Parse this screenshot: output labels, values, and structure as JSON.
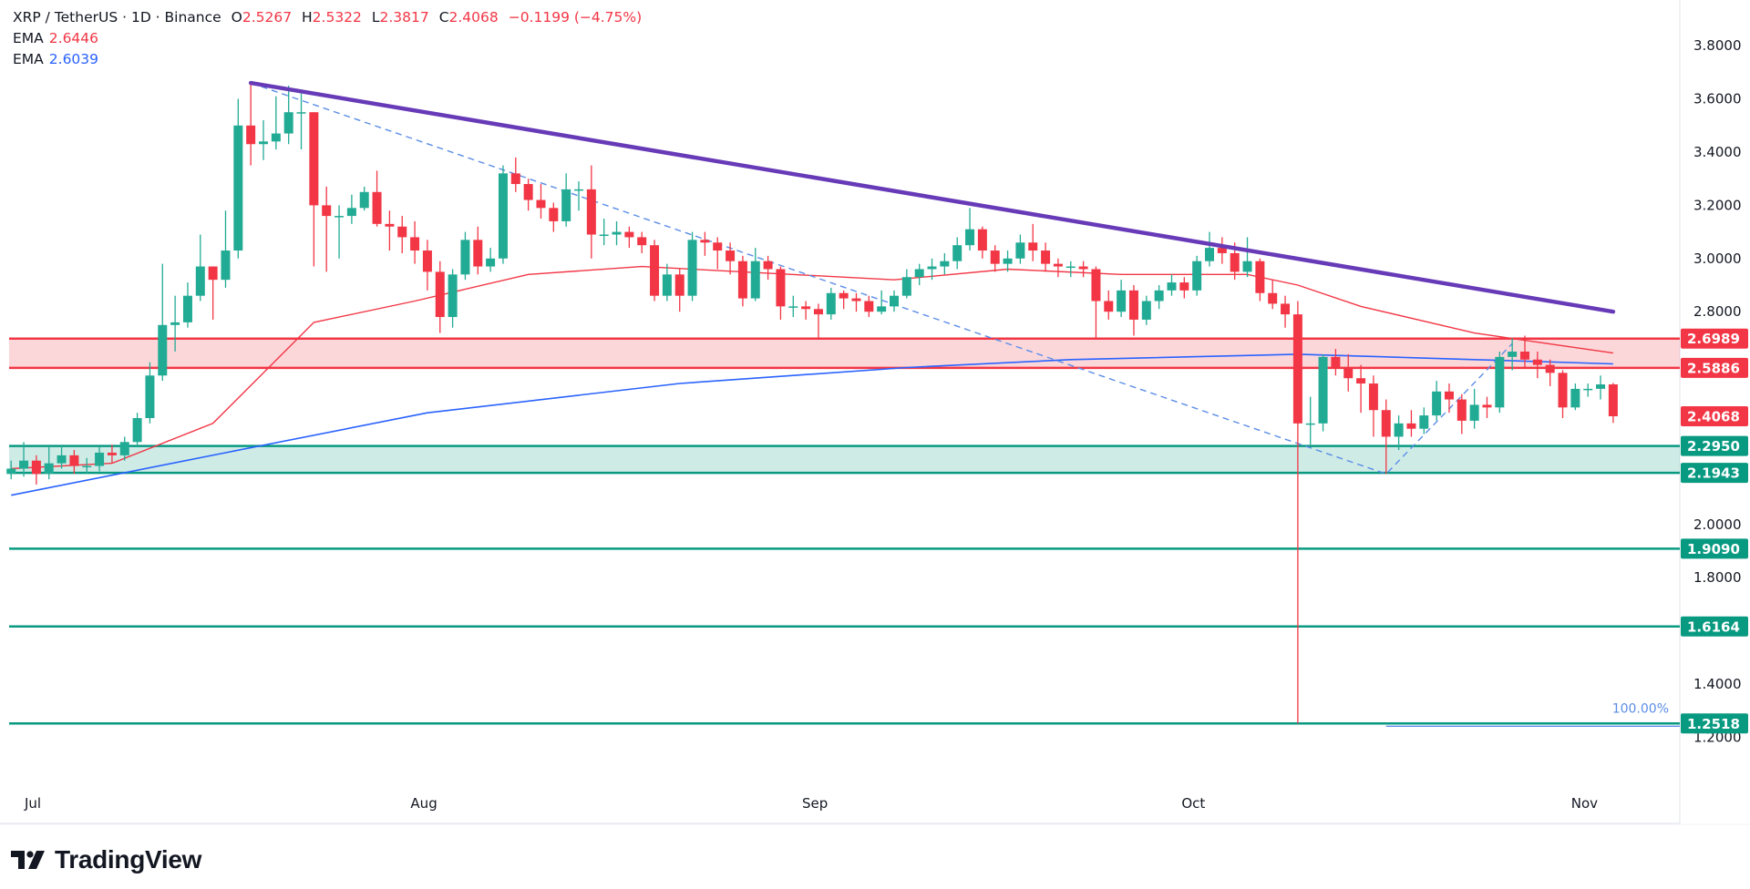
{
  "header": {
    "symbol": "XRP / TetherUS · 1D · Binance",
    "open_label": "O",
    "open": "2.5267",
    "high_label": "H",
    "high": "2.5322",
    "low_label": "L",
    "low": "2.3817",
    "close_label": "C",
    "close": "2.4068",
    "change": "−0.1199 (−4.75%)",
    "ema1_label": "EMA",
    "ema1_value": "2.6446",
    "ema2_label": "EMA",
    "ema2_value": "2.6039"
  },
  "branding": {
    "logo_text": "TradingView"
  },
  "colors": {
    "up": "#22ab94",
    "down": "#f23645",
    "ema_fast": "#f23645",
    "ema_slow": "#2962ff",
    "trendline": "#673ab7",
    "support": "#089981",
    "resistance": "#f23645",
    "fib": "#5b8de6"
  },
  "chart_data": {
    "type": "candlestick",
    "title": "XRP / TetherUS · 1D · Binance",
    "date_range": [
      "06-30",
      "11-04"
    ],
    "ylim": [
      1.08,
      3.97
    ],
    "grid": false,
    "y_ticks": [
      "3.8000",
      "3.6000",
      "3.4000",
      "3.2000",
      "3.0000",
      "2.8000",
      "2.0000",
      "1.8000",
      "1.4000",
      "1.2000"
    ],
    "x_ticks": [
      {
        "label": "Jul",
        "date": "07-01"
      },
      {
        "label": "Aug",
        "date": "08-01"
      },
      {
        "label": "Sep",
        "date": "09-01"
      },
      {
        "label": "Oct",
        "date": "10-01"
      },
      {
        "label": "Nov",
        "date": "11-01"
      }
    ],
    "candles_ohlc": [
      [
        2.19,
        2.24,
        2.17,
        2.21
      ],
      [
        2.21,
        2.31,
        2.18,
        2.24
      ],
      [
        2.24,
        2.26,
        2.15,
        2.19
      ],
      [
        2.19,
        2.29,
        2.17,
        2.23
      ],
      [
        2.23,
        2.3,
        2.21,
        2.26
      ],
      [
        2.26,
        2.28,
        2.19,
        2.22
      ],
      [
        2.22,
        2.25,
        2.19,
        2.22
      ],
      [
        2.22,
        2.29,
        2.2,
        2.27
      ],
      [
        2.27,
        2.3,
        2.23,
        2.26
      ],
      [
        2.26,
        2.33,
        2.24,
        2.31
      ],
      [
        2.31,
        2.42,
        2.29,
        2.4
      ],
      [
        2.4,
        2.61,
        2.38,
        2.56
      ],
      [
        2.56,
        2.98,
        2.54,
        2.75
      ],
      [
        2.75,
        2.86,
        2.65,
        2.76
      ],
      [
        2.76,
        2.91,
        2.74,
        2.86
      ],
      [
        2.86,
        3.09,
        2.84,
        2.97
      ],
      [
        2.97,
        2.97,
        2.77,
        2.92
      ],
      [
        2.92,
        3.18,
        2.89,
        3.03
      ],
      [
        3.03,
        3.6,
        3.0,
        3.5
      ],
      [
        3.5,
        3.66,
        3.35,
        3.43
      ],
      [
        3.43,
        3.52,
        3.37,
        3.44
      ],
      [
        3.44,
        3.61,
        3.41,
        3.47
      ],
      [
        3.47,
        3.65,
        3.43,
        3.55
      ],
      [
        3.55,
        3.62,
        3.41,
        3.55
      ],
      [
        3.55,
        3.55,
        2.97,
        3.2
      ],
      [
        3.2,
        3.27,
        2.95,
        3.16
      ],
      [
        3.16,
        3.2,
        3.0,
        3.16
      ],
      [
        3.16,
        3.24,
        3.13,
        3.19
      ],
      [
        3.19,
        3.27,
        3.18,
        3.25
      ],
      [
        3.25,
        3.33,
        3.12,
        3.13
      ],
      [
        3.13,
        3.18,
        3.03,
        3.12
      ],
      [
        3.12,
        3.16,
        3.02,
        3.08
      ],
      [
        3.08,
        3.14,
        2.98,
        3.03
      ],
      [
        3.03,
        3.07,
        2.88,
        2.95
      ],
      [
        2.95,
        2.99,
        2.72,
        2.78
      ],
      [
        2.78,
        2.96,
        2.74,
        2.94
      ],
      [
        2.94,
        3.1,
        2.92,
        3.07
      ],
      [
        3.07,
        3.12,
        2.94,
        2.97
      ],
      [
        2.97,
        3.04,
        2.95,
        3.0
      ],
      [
        3.0,
        3.35,
        2.98,
        3.32
      ],
      [
        3.32,
        3.38,
        3.25,
        3.28
      ],
      [
        3.28,
        3.3,
        3.18,
        3.22
      ],
      [
        3.22,
        3.28,
        3.15,
        3.19
      ],
      [
        3.19,
        3.21,
        3.1,
        3.14
      ],
      [
        3.14,
        3.32,
        3.12,
        3.26
      ],
      [
        3.26,
        3.29,
        3.18,
        3.26
      ],
      [
        3.26,
        3.35,
        3.0,
        3.09
      ],
      [
        3.09,
        3.15,
        3.05,
        3.09
      ],
      [
        3.09,
        3.14,
        3.05,
        3.1
      ],
      [
        3.1,
        3.12,
        3.04,
        3.08
      ],
      [
        3.08,
        3.1,
        3.02,
        3.05
      ],
      [
        3.05,
        3.07,
        2.84,
        2.86
      ],
      [
        2.86,
        2.98,
        2.84,
        2.94
      ],
      [
        2.94,
        2.96,
        2.8,
        2.86
      ],
      [
        2.86,
        3.1,
        2.84,
        3.07
      ],
      [
        3.07,
        3.1,
        3.01,
        3.06
      ],
      [
        3.06,
        3.08,
        2.96,
        3.03
      ],
      [
        3.03,
        3.06,
        2.94,
        2.99
      ],
      [
        2.99,
        3.01,
        2.82,
        2.85
      ],
      [
        2.85,
        3.04,
        2.84,
        2.99
      ],
      [
        2.99,
        3.01,
        2.92,
        2.96
      ],
      [
        2.96,
        2.97,
        2.77,
        2.82
      ],
      [
        2.82,
        2.86,
        2.78,
        2.82
      ],
      [
        2.82,
        2.84,
        2.77,
        2.81
      ],
      [
        2.81,
        2.83,
        2.7,
        2.79
      ],
      [
        2.79,
        2.89,
        2.77,
        2.87
      ],
      [
        2.87,
        2.88,
        2.81,
        2.85
      ],
      [
        2.85,
        2.87,
        2.8,
        2.84
      ],
      [
        2.84,
        2.86,
        2.78,
        2.8
      ],
      [
        2.8,
        2.88,
        2.79,
        2.82
      ],
      [
        2.82,
        2.88,
        2.8,
        2.86
      ],
      [
        2.86,
        2.96,
        2.85,
        2.93
      ],
      [
        2.93,
        2.98,
        2.9,
        2.96
      ],
      [
        2.96,
        3.0,
        2.92,
        2.97
      ],
      [
        2.97,
        3.02,
        2.94,
        2.99
      ],
      [
        2.99,
        3.08,
        2.96,
        3.05
      ],
      [
        3.05,
        3.19,
        3.03,
        3.11
      ],
      [
        3.11,
        3.12,
        3.0,
        3.03
      ],
      [
        3.03,
        3.05,
        2.95,
        2.98
      ],
      [
        2.98,
        3.03,
        2.95,
        3.0
      ],
      [
        3.0,
        3.09,
        2.98,
        3.06
      ],
      [
        3.06,
        3.13,
        2.99,
        3.03
      ],
      [
        3.03,
        3.06,
        2.95,
        2.98
      ],
      [
        2.98,
        3.0,
        2.93,
        2.97
      ],
      [
        2.97,
        2.99,
        2.93,
        2.97
      ],
      [
        2.97,
        2.99,
        2.93,
        2.96
      ],
      [
        2.96,
        2.97,
        2.7,
        2.84
      ],
      [
        2.84,
        2.88,
        2.77,
        2.8
      ],
      [
        2.8,
        2.92,
        2.78,
        2.88
      ],
      [
        2.88,
        2.9,
        2.71,
        2.77
      ],
      [
        2.77,
        2.86,
        2.75,
        2.84
      ],
      [
        2.84,
        2.9,
        2.81,
        2.88
      ],
      [
        2.88,
        2.94,
        2.86,
        2.91
      ],
      [
        2.91,
        2.93,
        2.85,
        2.88
      ],
      [
        2.88,
        3.01,
        2.86,
        2.99
      ],
      [
        2.99,
        3.1,
        2.97,
        3.04
      ],
      [
        3.04,
        3.08,
        2.98,
        3.02
      ],
      [
        3.02,
        3.06,
        2.92,
        2.95
      ],
      [
        2.95,
        3.08,
        2.93,
        2.99
      ],
      [
        2.99,
        3.0,
        2.84,
        2.87
      ],
      [
        2.87,
        2.92,
        2.81,
        2.83
      ],
      [
        2.83,
        2.86,
        2.74,
        2.79
      ],
      [
        2.79,
        2.84,
        1.2518,
        2.38
      ],
      [
        2.38,
        2.48,
        2.3,
        2.38
      ],
      [
        2.38,
        2.64,
        2.35,
        2.63
      ],
      [
        2.63,
        2.66,
        2.56,
        2.59
      ],
      [
        2.59,
        2.64,
        2.5,
        2.55
      ],
      [
        2.55,
        2.6,
        2.42,
        2.53
      ],
      [
        2.53,
        2.56,
        2.33,
        2.43
      ],
      [
        2.43,
        2.47,
        2.19,
        2.33
      ],
      [
        2.33,
        2.41,
        2.28,
        2.38
      ],
      [
        2.38,
        2.43,
        2.33,
        2.36
      ],
      [
        2.36,
        2.44,
        2.34,
        2.41
      ],
      [
        2.41,
        2.54,
        2.39,
        2.5
      ],
      [
        2.5,
        2.53,
        2.42,
        2.47
      ],
      [
        2.47,
        2.49,
        2.34,
        2.39
      ],
      [
        2.39,
        2.51,
        2.36,
        2.45
      ],
      [
        2.45,
        2.48,
        2.4,
        2.44
      ],
      [
        2.44,
        2.65,
        2.42,
        2.63
      ],
      [
        2.63,
        2.7,
        2.58,
        2.65
      ],
      [
        2.65,
        2.71,
        2.59,
        2.62
      ],
      [
        2.62,
        2.65,
        2.55,
        2.6
      ],
      [
        2.6,
        2.62,
        2.52,
        2.57
      ],
      [
        2.57,
        2.58,
        2.4,
        2.44
      ],
      [
        2.44,
        2.53,
        2.43,
        2.51
      ],
      [
        2.51,
        2.53,
        2.48,
        2.51
      ],
      [
        2.51,
        2.56,
        2.47,
        2.5267
      ],
      [
        2.5267,
        2.5322,
        2.3817,
        2.4068
      ]
    ],
    "ema_fast": [
      [
        "06-30",
        2.21
      ],
      [
        "07-08",
        2.23
      ],
      [
        "07-16",
        2.38
      ],
      [
        "07-24",
        2.76
      ],
      [
        "08-01",
        2.84
      ],
      [
        "08-10",
        2.94
      ],
      [
        "08-19",
        2.97
      ],
      [
        "09-08",
        2.92
      ],
      [
        "09-17",
        2.96
      ],
      [
        "09-26",
        2.94
      ],
      [
        "10-06",
        2.94
      ],
      [
        "10-10",
        2.9
      ],
      [
        "10-15",
        2.82
      ],
      [
        "10-24",
        2.72
      ],
      [
        "11-04",
        2.6446
      ]
    ],
    "ema_slow": [
      [
        "06-30",
        2.11
      ],
      [
        "07-17",
        2.27
      ],
      [
        "08-02",
        2.42
      ],
      [
        "08-22",
        2.53
      ],
      [
        "09-09",
        2.59
      ],
      [
        "09-22",
        2.62
      ],
      [
        "10-10",
        2.64
      ],
      [
        "10-24",
        2.62
      ],
      [
        "11-04",
        2.6039
      ]
    ],
    "trendline": [
      [
        "07-19",
        3.66
      ],
      [
        "11-04",
        2.8
      ]
    ],
    "fib_path": [
      [
        "07-19",
        3.66
      ],
      [
        "10-17",
        2.19
      ],
      [
        "10-27",
        2.68
      ]
    ],
    "fib_level": {
      "label": "100.00%",
      "value": 1.2518,
      "from": "10-17"
    },
    "zones": [
      {
        "kind": "resistance",
        "top": 2.6989,
        "bottom": 2.5886
      },
      {
        "kind": "support",
        "top": 2.295,
        "bottom": 2.1943
      }
    ],
    "levels": [
      {
        "value": 2.6989,
        "label": "2.6989",
        "kind": "resistance"
      },
      {
        "value": 2.5886,
        "label": "2.5886",
        "kind": "resistance"
      },
      {
        "value": 2.295,
        "label": "2.2950",
        "kind": "support"
      },
      {
        "value": 2.1943,
        "label": "2.1943",
        "kind": "support"
      },
      {
        "value": 1.909,
        "label": "1.9090",
        "kind": "support"
      },
      {
        "value": 1.6164,
        "label": "1.6164",
        "kind": "support"
      },
      {
        "value": 1.2518,
        "label": "1.2518",
        "kind": "support"
      }
    ],
    "last_price": {
      "value": 2.4068,
      "label": "2.4068"
    }
  }
}
